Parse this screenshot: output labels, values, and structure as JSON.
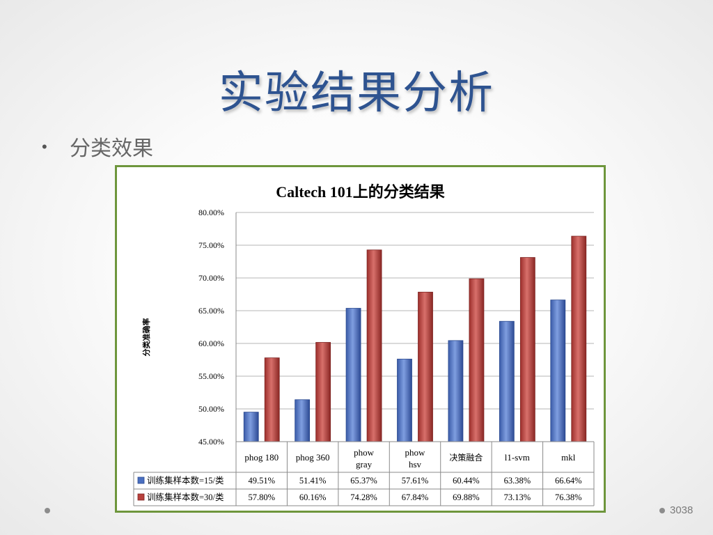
{
  "slide": {
    "title": "实验结果分析",
    "bullet": "分类效果",
    "page_number": "3038"
  },
  "colors": {
    "title": "#2e5390",
    "chart_border": "#6e963c",
    "series_1": "#4a6fc0",
    "series_2": "#b8403c"
  },
  "chart_data": {
    "type": "bar",
    "title": "Caltech 101上的分类结果",
    "ylabel": "分类准确率",
    "xlabel": "",
    "ylim": [
      45,
      80
    ],
    "yticks": [
      "45.00%",
      "50.00%",
      "55.00%",
      "60.00%",
      "65.00%",
      "70.00%",
      "75.00%",
      "80.00%"
    ],
    "grid": true,
    "legend": "table-left",
    "categories": [
      "phog 180",
      "phog 360",
      "phow gray",
      "phow hsv",
      "决策融合",
      "l1-svm",
      "mkl"
    ],
    "series": [
      {
        "name": "训练集样本数=15/类",
        "values": [
          49.51,
          51.41,
          65.37,
          57.61,
          60.44,
          63.38,
          66.64
        ],
        "labels": [
          "49.51%",
          "51.41%",
          "65.37%",
          "57.61%",
          "60.44%",
          "63.38%",
          "66.64%"
        ]
      },
      {
        "name": "训练集样本数=30/类",
        "values": [
          57.8,
          60.16,
          74.28,
          67.84,
          69.88,
          73.13,
          76.38
        ],
        "labels": [
          "57.80%",
          "60.16%",
          "74.28%",
          "67.84%",
          "69.88%",
          "73.13%",
          "76.38%"
        ]
      }
    ]
  }
}
